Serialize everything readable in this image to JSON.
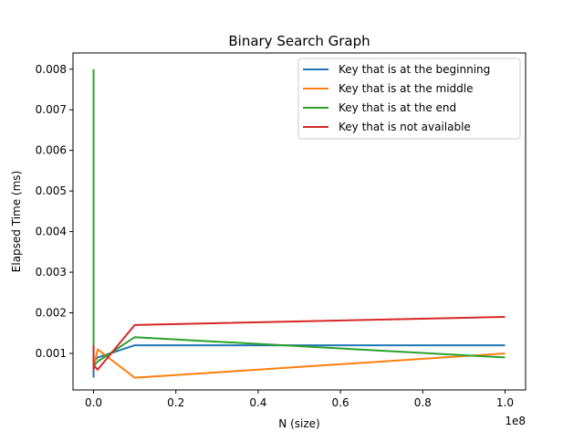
{
  "chart_data": {
    "type": "line",
    "title": "Binary Search Graph",
    "xlabel": "N (size)",
    "ylabel": "Elapsed Time (ms)",
    "x_offset_label": "1e8",
    "xlim": [
      -5000000,
      105000000
    ],
    "ylim": [
      0.0001,
      0.0084
    ],
    "x_ticks": [
      0,
      20000000,
      40000000,
      60000000,
      80000000,
      100000000
    ],
    "x_tick_labels": [
      "0.0",
      "0.2",
      "0.4",
      "0.6",
      "0.8",
      "1.0"
    ],
    "y_ticks": [
      0.001,
      0.002,
      0.003,
      0.004,
      0.005,
      0.006,
      0.007,
      0.008
    ],
    "y_tick_labels": [
      "0.001",
      "0.002",
      "0.003",
      "0.004",
      "0.005",
      "0.006",
      "0.007",
      "0.008"
    ],
    "grid": false,
    "legend_position": "upper-right",
    "series": [
      {
        "name": "Key that is at the beginning",
        "color": "#1f77b4",
        "x": [
          10,
          100,
          1000,
          10000,
          100000,
          1000000,
          10000000,
          100000000
        ],
        "y": [
          0.0004,
          0.0005,
          0.0006,
          0.0007,
          0.0008,
          0.0009,
          0.0012,
          0.0012
        ]
      },
      {
        "name": "Key that is at the middle",
        "color": "#ff7f0e",
        "x": [
          10,
          100,
          1000,
          10000,
          100000,
          1000000,
          10000000,
          100000000
        ],
        "y": [
          0.0008,
          0.0007,
          0.0009,
          0.0008,
          0.0007,
          0.0011,
          0.0004,
          0.001
        ]
      },
      {
        "name": "Key that is at the end",
        "color": "#2ca02c",
        "x": [
          10,
          100,
          1000,
          10000,
          100000,
          1000000,
          10000000,
          100000000
        ],
        "y": [
          0.008,
          0.0009,
          0.0008,
          0.0007,
          0.0007,
          0.0008,
          0.0014,
          0.0009
        ]
      },
      {
        "name": "Key that is not available",
        "color": "#d62728",
        "x": [
          10,
          100,
          1000,
          10000,
          100000,
          1000000,
          10000000,
          100000000
        ],
        "y": [
          0.0012,
          0.0007,
          0.0009,
          0.0006,
          0.0007,
          0.0006,
          0.0017,
          0.0019
        ]
      }
    ]
  }
}
